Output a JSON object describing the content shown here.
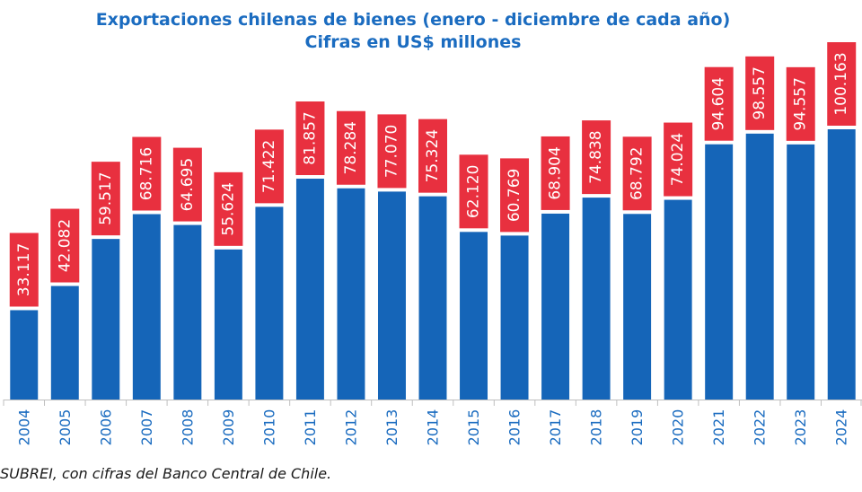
{
  "chart_data": {
    "type": "bar",
    "title": "Exportaciones chilenas de bienes (enero - diciembre de cada año)",
    "subtitle": "Cifras en US$ millones",
    "categories": [
      "2004",
      "2005",
      "2006",
      "2007",
      "2008",
      "2009",
      "2010",
      "2011",
      "2012",
      "2013",
      "2014",
      "2015",
      "2016",
      "2017",
      "2018",
      "2019",
      "2020",
      "2021",
      "2022",
      "2023",
      "2024"
    ],
    "values": [
      33117,
      42082,
      59517,
      68716,
      64695,
      55624,
      71422,
      81857,
      78284,
      77070,
      75324,
      62120,
      60769,
      68904,
      74838,
      68792,
      74024,
      94604,
      98557,
      94557,
      100163
    ],
    "value_labels": [
      "33.117",
      "42.082",
      "59.517",
      "68.716",
      "64.695",
      "55.624",
      "71.422",
      "81.857",
      "78.284",
      "77.070",
      "75.324",
      "62.120",
      "60.769",
      "68.904",
      "74.838",
      "68.792",
      "74.024",
      "94.604",
      "98.557",
      "94.557",
      "100.163"
    ],
    "xlabel": "",
    "ylabel": "",
    "ylim": [
      0,
      100163
    ],
    "grid": false,
    "legend": "none",
    "colors": {
      "bar": "#1565b8",
      "label_box": "#e8303f",
      "label_text": "#ffffff",
      "title": "#1b6cc0",
      "tick_text": "#1b6cc0",
      "axis": "#bfbfbf"
    }
  },
  "source_note": "SUBREI, con cifras del Banco Central de Chile."
}
